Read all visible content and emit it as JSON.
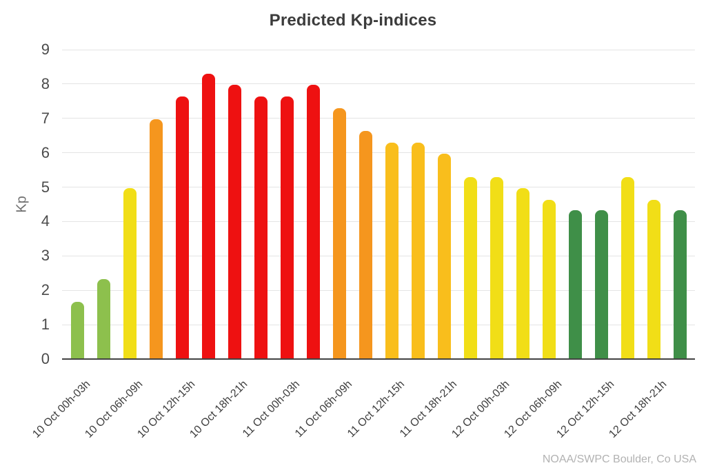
{
  "title": "Predicted Kp-indices",
  "y_axis": {
    "title": "Kp",
    "ticks": [
      "0",
      "1",
      "2",
      "3",
      "4",
      "5",
      "6",
      "7",
      "8",
      "9"
    ]
  },
  "watermark": "NOAA/SWPC Boulder, Co USA",
  "palette": {
    "green_light": "#8dc04d",
    "green_dark": "#3f8f48",
    "yellow": "#f1de17",
    "amber": "#f9be1c",
    "orange": "#f5961e",
    "red": "#ee1111"
  },
  "chart_data": {
    "type": "bar",
    "title": "Predicted Kp-indices",
    "xlabel": "",
    "ylabel": "Kp",
    "ylim": [
      0,
      9
    ],
    "grid": "horizontal",
    "legend": "none",
    "source_note": "NOAA/SWPC Boulder, Co USA",
    "bars": [
      {
        "label": "10 Oct 00h-03h",
        "value": 1.67,
        "color": "green_light"
      },
      {
        "label": "",
        "value": 2.33,
        "color": "green_light"
      },
      {
        "label": "10 Oct 06h-09h",
        "value": 4.97,
        "color": "yellow"
      },
      {
        "label": "",
        "value": 6.97,
        "color": "orange"
      },
      {
        "label": "10 Oct 12h-15h",
        "value": 7.63,
        "color": "red"
      },
      {
        "label": "",
        "value": 8.3,
        "color": "red"
      },
      {
        "label": "10 Oct 18h-21h",
        "value": 7.97,
        "color": "red"
      },
      {
        "label": "",
        "value": 7.63,
        "color": "red"
      },
      {
        "label": "11 Oct 00h-03h",
        "value": 7.63,
        "color": "red"
      },
      {
        "label": "",
        "value": 7.97,
        "color": "red"
      },
      {
        "label": "11 Oct 06h-09h",
        "value": 7.3,
        "color": "orange"
      },
      {
        "label": "",
        "value": 6.63,
        "color": "orange"
      },
      {
        "label": "11 Oct 12h-15h",
        "value": 6.3,
        "color": "amber"
      },
      {
        "label": "",
        "value": 6.3,
        "color": "amber"
      },
      {
        "label": "11 Oct 18h-21h",
        "value": 5.97,
        "color": "amber"
      },
      {
        "label": "",
        "value": 5.3,
        "color": "yellow"
      },
      {
        "label": "12 Oct 00h-03h",
        "value": 5.3,
        "color": "yellow"
      },
      {
        "label": "",
        "value": 4.97,
        "color": "yellow"
      },
      {
        "label": "12 Oct 06h-09h",
        "value": 4.63,
        "color": "yellow"
      },
      {
        "label": "",
        "value": 4.33,
        "color": "green_dark"
      },
      {
        "label": "12 Oct 12h-15h",
        "value": 4.33,
        "color": "green_dark"
      },
      {
        "label": "",
        "value": 5.3,
        "color": "yellow"
      },
      {
        "label": "12 Oct 18h-21h",
        "value": 4.63,
        "color": "yellow"
      },
      {
        "label": "",
        "value": 4.33,
        "color": "green_dark"
      }
    ]
  }
}
